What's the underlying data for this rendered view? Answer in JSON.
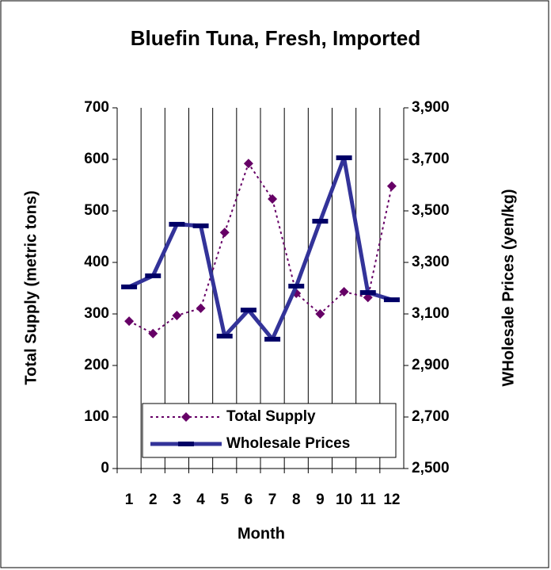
{
  "chart_data": {
    "type": "line",
    "title": "Bluefin Tuna, Fresh, Imported",
    "x_label": "Month",
    "y_label": "Total Supply (metric tons)",
    "y2_label": "WHolesale Prices (yen/kg)",
    "categories": [
      "1",
      "2",
      "3",
      "4",
      "5",
      "6",
      "7",
      "8",
      "9",
      "10",
      "11",
      "12"
    ],
    "series": [
      {
        "name": "Total Supply",
        "color": "#660066",
        "axis": "y",
        "values": [
          286,
          262,
          297,
          311,
          458,
          592,
          523,
          340,
          300,
          343,
          332,
          548
        ]
      },
      {
        "name": "Wholesale Prices",
        "color": "#333399",
        "axis": "y2",
        "values": [
          3205,
          3248,
          3448,
          3442,
          3014,
          3115,
          3002,
          3208,
          3460,
          3706,
          3183,
          3155
        ]
      }
    ],
    "ylim": [
      0,
      700
    ],
    "yticks": [
      0,
      100,
      200,
      300,
      400,
      500,
      600,
      700
    ],
    "y2lim": [
      2500,
      3900
    ],
    "y2ticks": [
      {
        "value": 2500,
        "label": "2,500"
      },
      {
        "value": 2700,
        "label": "2,700"
      },
      {
        "value": 2900,
        "label": "2,900"
      },
      {
        "value": 3100,
        "label": "3,100"
      },
      {
        "value": 3300,
        "label": "3,300"
      },
      {
        "value": 3500,
        "label": "3,500"
      },
      {
        "value": 3700,
        "label": "3,700"
      },
      {
        "value": 3900,
        "label": "3,900"
      }
    ],
    "grid": true,
    "legend": "lower left"
  }
}
